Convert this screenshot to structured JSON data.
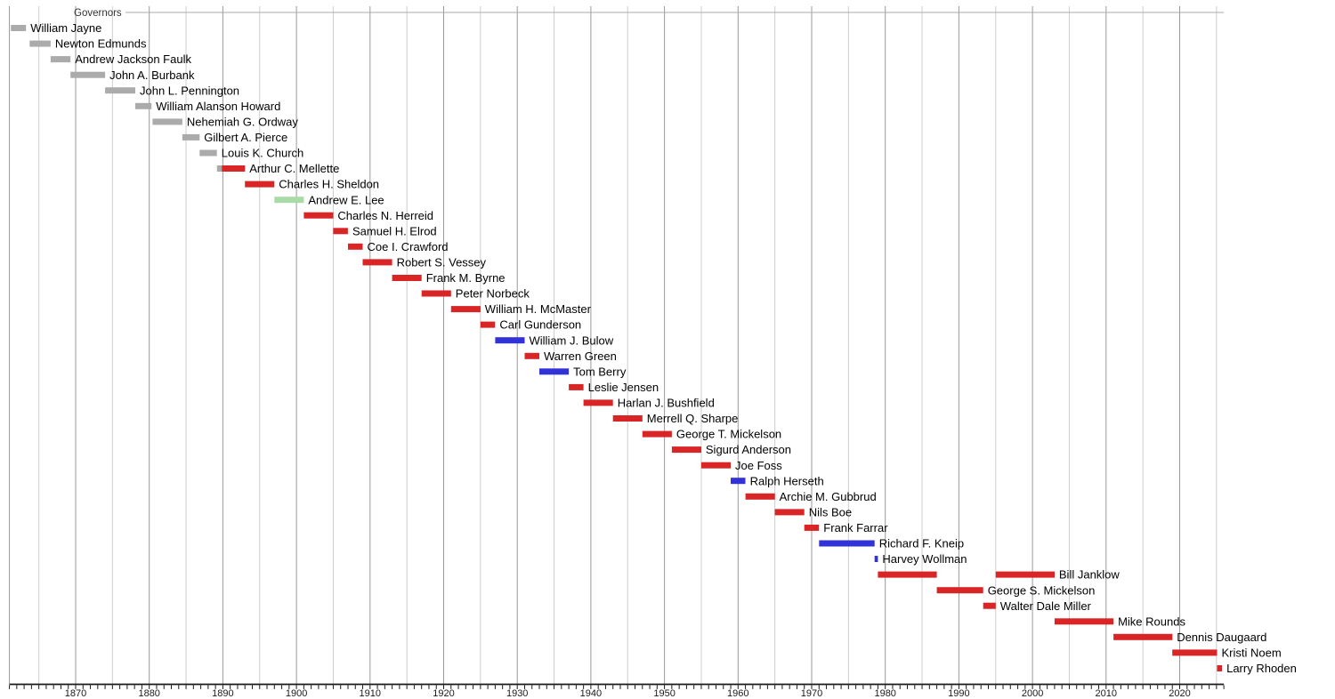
{
  "chart_data": {
    "type": "bar",
    "subtype": "gantt_timeline",
    "title": "Governors",
    "xlabel": "",
    "ylabel": "",
    "grid": true,
    "legend_position": "none",
    "x_axis": {
      "min": 1861,
      "max": 2026,
      "tick_interval": 1,
      "grid_interval": 5,
      "label_interval": 10,
      "tick_labels": [
        "1870",
        "1880",
        "1890",
        "1900",
        "1910",
        "1920",
        "1930",
        "1940",
        "1950",
        "1960",
        "1970",
        "1980",
        "1990",
        "2000",
        "2010",
        "2020"
      ]
    },
    "colors": {
      "territorial": "#ABABAB",
      "republican": "#D92526",
      "democratic": "#3232D9",
      "populist": "#A9DBA9"
    },
    "governors": [
      {
        "name": "William Jayne",
        "party": "territorial",
        "terms": [
          [
            1861.2,
            1863.25
          ]
        ]
      },
      {
        "name": "Newton Edmunds",
        "party": "territorial",
        "terms": [
          [
            1863.75,
            1866.6
          ]
        ]
      },
      {
        "name": "Andrew Jackson Faulk",
        "party": "territorial",
        "terms": [
          [
            1866.6,
            1869.3
          ]
        ]
      },
      {
        "name": "John A. Burbank",
        "party": "territorial",
        "terms": [
          [
            1869.3,
            1874.0
          ]
        ]
      },
      {
        "name": "John L. Pennington",
        "party": "territorial",
        "terms": [
          [
            1874.0,
            1878.1
          ]
        ]
      },
      {
        "name": "William Alanson Howard",
        "party": "territorial",
        "terms": [
          [
            1878.1,
            1880.3
          ]
        ]
      },
      {
        "name": "Nehemiah G. Ordway",
        "party": "territorial",
        "terms": [
          [
            1880.45,
            1884.5
          ]
        ]
      },
      {
        "name": "Gilbert A. Pierce",
        "party": "territorial",
        "terms": [
          [
            1884.5,
            1886.85
          ]
        ]
      },
      {
        "name": "Louis K. Church",
        "party": "territorial",
        "terms": [
          [
            1886.85,
            1889.2
          ]
        ]
      },
      {
        "name": "Arthur C. Mellette",
        "party": "republican",
        "terms": [
          [
            1889.2,
            1889.85,
            "territorial"
          ],
          [
            1889.85,
            1893.0,
            "republican"
          ]
        ]
      },
      {
        "name": "Charles H. Sheldon",
        "party": "republican",
        "terms": [
          [
            1893.0,
            1897.0
          ]
        ]
      },
      {
        "name": "Andrew E. Lee",
        "party": "populist",
        "terms": [
          [
            1897.0,
            1901.0
          ]
        ]
      },
      {
        "name": "Charles N. Herreid",
        "party": "republican",
        "terms": [
          [
            1901.0,
            1905.0
          ]
        ]
      },
      {
        "name": "Samuel H. Elrod",
        "party": "republican",
        "terms": [
          [
            1905.0,
            1907.0
          ]
        ]
      },
      {
        "name": "Coe I. Crawford",
        "party": "republican",
        "terms": [
          [
            1907.0,
            1909.0
          ]
        ]
      },
      {
        "name": "Robert S. Vessey",
        "party": "republican",
        "terms": [
          [
            1909.0,
            1913.0
          ]
        ]
      },
      {
        "name": "Frank M. Byrne",
        "party": "republican",
        "terms": [
          [
            1913.0,
            1917.0
          ]
        ]
      },
      {
        "name": "Peter Norbeck",
        "party": "republican",
        "terms": [
          [
            1917.0,
            1921.0
          ]
        ]
      },
      {
        "name": "William H. McMaster",
        "party": "republican",
        "terms": [
          [
            1921.0,
            1925.0
          ]
        ]
      },
      {
        "name": "Carl Gunderson",
        "party": "republican",
        "terms": [
          [
            1925.0,
            1927.0
          ]
        ]
      },
      {
        "name": "William J. Bulow",
        "party": "democratic",
        "terms": [
          [
            1927.0,
            1931.0
          ]
        ]
      },
      {
        "name": "Warren Green",
        "party": "republican",
        "terms": [
          [
            1931.0,
            1933.0
          ]
        ]
      },
      {
        "name": "Tom Berry",
        "party": "democratic",
        "terms": [
          [
            1933.0,
            1937.0
          ]
        ]
      },
      {
        "name": "Leslie Jensen",
        "party": "republican",
        "terms": [
          [
            1937.0,
            1939.0
          ]
        ]
      },
      {
        "name": "Harlan J. Bushfield",
        "party": "republican",
        "terms": [
          [
            1939.0,
            1943.0
          ]
        ]
      },
      {
        "name": "Merrell Q. Sharpe",
        "party": "republican",
        "terms": [
          [
            1943.0,
            1947.0
          ]
        ]
      },
      {
        "name": "George T. Mickelson",
        "party": "republican",
        "terms": [
          [
            1947.0,
            1951.0
          ]
        ]
      },
      {
        "name": "Sigurd Anderson",
        "party": "republican",
        "terms": [
          [
            1951.0,
            1955.0
          ]
        ]
      },
      {
        "name": "Joe Foss",
        "party": "republican",
        "terms": [
          [
            1955.0,
            1959.0
          ]
        ]
      },
      {
        "name": "Ralph Herseth",
        "party": "democratic",
        "terms": [
          [
            1959.0,
            1961.0
          ]
        ]
      },
      {
        "name": "Archie M. Gubbrud",
        "party": "republican",
        "terms": [
          [
            1961.0,
            1965.0
          ]
        ]
      },
      {
        "name": "Nils Boe",
        "party": "republican",
        "terms": [
          [
            1965.0,
            1969.0
          ]
        ]
      },
      {
        "name": "Frank Farrar",
        "party": "republican",
        "terms": [
          [
            1969.0,
            1971.0
          ]
        ]
      },
      {
        "name": "Richard F. Kneip",
        "party": "democratic",
        "terms": [
          [
            1971.0,
            1978.55
          ]
        ]
      },
      {
        "name": "Harvey Wollman",
        "party": "democratic",
        "terms": [
          [
            1978.55,
            1979.0
          ]
        ]
      },
      {
        "name": "Bill Janklow",
        "party": "republican",
        "terms": [
          [
            1979.0,
            1987.0
          ],
          [
            1995.0,
            2003.0
          ]
        ]
      },
      {
        "name": "George S. Mickelson",
        "party": "republican",
        "terms": [
          [
            1987.0,
            1993.3
          ]
        ]
      },
      {
        "name": "Walter Dale Miller",
        "party": "republican",
        "terms": [
          [
            1993.3,
            1995.0
          ]
        ]
      },
      {
        "name": "Mike Rounds",
        "party": "republican",
        "terms": [
          [
            2003.0,
            2011.0
          ]
        ]
      },
      {
        "name": "Dennis Daugaard",
        "party": "republican",
        "terms": [
          [
            2011.0,
            2019.0
          ]
        ]
      },
      {
        "name": "Kristi Noem",
        "party": "republican",
        "terms": [
          [
            2019.0,
            2025.08
          ]
        ]
      },
      {
        "name": "Larry Rhoden",
        "party": "republican",
        "terms": [
          [
            2025.08,
            2025.75
          ]
        ]
      }
    ]
  }
}
